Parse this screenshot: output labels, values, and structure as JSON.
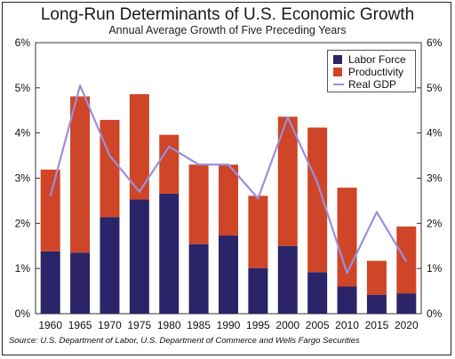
{
  "title": "Long-Run Determinants of U.S. Economic Growth",
  "subtitle": "Annual Average Growth of Five Preceding Years",
  "source": "Source: U.S. Department of Labor, U.S. Department of Commerce and Wells Fargo Securities",
  "colors": {
    "labor": "#2b2469",
    "productivity": "#cf4527",
    "gdp": "#9a8fdd"
  },
  "chart_data": {
    "type": "bar",
    "stacked": true,
    "categories": [
      "1960",
      "1965",
      "1970",
      "1975",
      "1980",
      "1985",
      "1990",
      "1995",
      "2000",
      "2005",
      "2010",
      "2015",
      "2020"
    ],
    "series": [
      {
        "name": "Labor Force",
        "type": "bar",
        "values": [
          1.38,
          1.35,
          2.14,
          2.53,
          2.66,
          1.54,
          1.73,
          1.01,
          1.5,
          0.92,
          0.6,
          0.42,
          0.45
        ]
      },
      {
        "name": "Productivity",
        "type": "bar",
        "values": [
          1.81,
          3.46,
          2.15,
          2.33,
          1.3,
          1.76,
          1.57,
          1.6,
          2.86,
          3.2,
          2.19,
          0.75,
          1.48
        ]
      },
      {
        "name": "Real GDP",
        "type": "line",
        "values": [
          2.6,
          5.05,
          3.5,
          2.7,
          3.7,
          3.3,
          3.3,
          2.55,
          4.35,
          2.9,
          0.9,
          2.25,
          1.15
        ]
      }
    ],
    "ylim": [
      0,
      6
    ],
    "yticks": [
      "0%",
      "1%",
      "2%",
      "3%",
      "4%",
      "5%",
      "6%"
    ],
    "legend": "top-right",
    "grid": false
  }
}
